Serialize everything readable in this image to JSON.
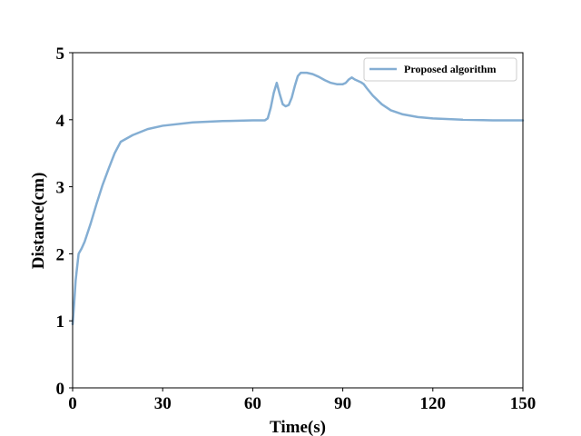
{
  "chart_data": {
    "type": "line",
    "xlabel": "Time(s)",
    "ylabel": "Distance(cm)",
    "xlim": [
      0,
      150
    ],
    "ylim": [
      0,
      5
    ],
    "xticks": [
      "0",
      "30",
      "60",
      "90",
      "120",
      "150"
    ],
    "yticks": [
      "0",
      "1",
      "2",
      "3",
      "4",
      "5"
    ],
    "grid": false,
    "legend_position": "top-right",
    "series": [
      {
        "name": "Proposed algorithm",
        "color": "#84aed3",
        "points": [
          [
            0,
            0.95
          ],
          [
            0.5,
            1.25
          ],
          [
            1,
            1.6
          ],
          [
            1.5,
            1.8
          ],
          [
            2,
            2.0
          ],
          [
            3,
            2.08
          ],
          [
            4,
            2.18
          ],
          [
            6,
            2.45
          ],
          [
            8,
            2.75
          ],
          [
            10,
            3.03
          ],
          [
            12,
            3.27
          ],
          [
            14,
            3.5
          ],
          [
            16,
            3.67
          ],
          [
            20,
            3.77
          ],
          [
            25,
            3.86
          ],
          [
            30,
            3.91
          ],
          [
            40,
            3.96
          ],
          [
            50,
            3.98
          ],
          [
            60,
            3.99
          ],
          [
            64,
            3.99
          ],
          [
            65,
            4.02
          ],
          [
            66,
            4.18
          ],
          [
            67,
            4.4
          ],
          [
            68,
            4.55
          ],
          [
            69,
            4.38
          ],
          [
            70,
            4.23
          ],
          [
            71,
            4.2
          ],
          [
            72,
            4.22
          ],
          [
            73,
            4.33
          ],
          [
            74,
            4.5
          ],
          [
            75,
            4.65
          ],
          [
            76,
            4.7
          ],
          [
            78,
            4.7
          ],
          [
            80,
            4.68
          ],
          [
            82,
            4.64
          ],
          [
            84,
            4.59
          ],
          [
            86,
            4.55
          ],
          [
            88,
            4.53
          ],
          [
            90,
            4.53
          ],
          [
            91,
            4.55
          ],
          [
            92,
            4.6
          ],
          [
            93,
            4.63
          ],
          [
            94,
            4.6
          ],
          [
            96,
            4.56
          ],
          [
            97,
            4.53
          ],
          [
            98,
            4.47
          ],
          [
            100,
            4.36
          ],
          [
            103,
            4.23
          ],
          [
            106,
            4.14
          ],
          [
            110,
            4.08
          ],
          [
            115,
            4.04
          ],
          [
            120,
            4.02
          ],
          [
            130,
            4.0
          ],
          [
            140,
            3.99
          ],
          [
            150,
            3.99
          ]
        ]
      }
    ]
  }
}
